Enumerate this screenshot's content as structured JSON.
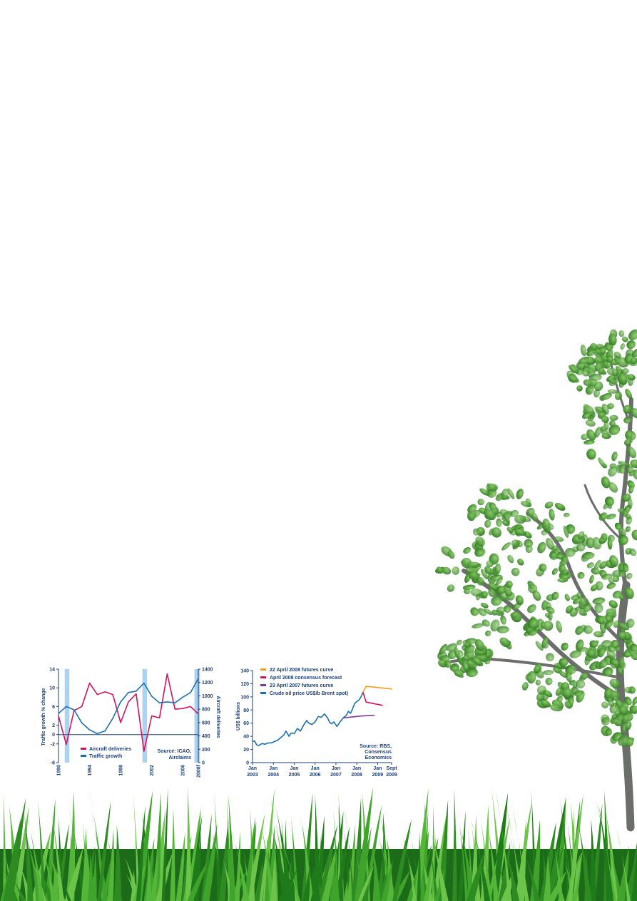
{
  "colors": {
    "navy": "#1b3f7a",
    "blue": "#1a6fb0",
    "crimson": "#d4145a",
    "orange": "#f5a01a",
    "purple": "#7b3f91",
    "recession": "#acd3ef",
    "grass": "#3a9a2a",
    "leaf": "#4f9a38"
  },
  "chart1": {
    "left_axis_label": "Traffic growth % change",
    "right_axis_label": "Aircraft deliveries",
    "source": [
      "Source: ICAO,",
      "Airclaims"
    ]
  },
  "chart2": {
    "y_axis_label": "US$ billions",
    "source": [
      "Source: RBS,",
      "Consensus",
      "Economics"
    ]
  },
  "chart_data": [
    {
      "type": "line",
      "ylim_left": [
        -6,
        14
      ],
      "ylim_right": [
        0,
        1400
      ],
      "y_ticks_left": [
        "14",
        "10",
        "6",
        "2",
        "0",
        "-2",
        "-6"
      ],
      "y_ticks_right": [
        "1400",
        "1200",
        "1000",
        "800",
        "600",
        "400",
        "200",
        "0"
      ],
      "x_ticks": [
        "1990",
        "1994",
        "1998",
        "2002",
        "2006",
        "2008f"
      ],
      "shaded_periods": [
        [
          1990.8,
          1991.4
        ],
        [
          2000.8,
          2001.4
        ],
        [
          2007.5,
          2008.2
        ]
      ],
      "legend": [
        "Aircraft deliveries",
        "Traffic growth"
      ],
      "series": [
        {
          "name": "Aircraft deliveries",
          "color": "#d4145a",
          "axis": "right",
          "x": [
            1990,
            1991,
            1992,
            1993,
            1994,
            1995,
            1996,
            1997,
            1998,
            1999,
            2000,
            2001,
            2002,
            2003,
            2004,
            2005,
            2006,
            2007,
            2008
          ],
          "values": [
            700,
            270,
            780,
            840,
            1190,
            1020,
            1060,
            1020,
            600,
            910,
            1030,
            170,
            700,
            670,
            1330,
            800,
            810,
            840,
            730
          ]
        },
        {
          "name": "Traffic growth",
          "color": "#1a6fb0",
          "axis": "left",
          "x": [
            1990,
            1991,
            1992,
            1993,
            1994,
            1995,
            1996,
            1997,
            1998,
            1999,
            2000,
            2001,
            2002,
            2003,
            2004,
            2005,
            2006,
            2007,
            2008
          ],
          "values": [
            4.5,
            6,
            5.3,
            2.5,
            1,
            0.2,
            0.8,
            3.5,
            7,
            9,
            9.3,
            11,
            8.2,
            6.8,
            7,
            6.8,
            8,
            9,
            12
          ]
        }
      ]
    },
    {
      "type": "line",
      "ylim": [
        0,
        140
      ],
      "y_ticks": [
        "140",
        "120",
        "100",
        "80",
        "60",
        "40",
        "20",
        "0"
      ],
      "x_ticks": [
        [
          "Jan",
          "2003"
        ],
        [
          "Jan",
          "2004"
        ],
        [
          "Jan",
          "2005"
        ],
        [
          "Jan",
          "2006"
        ],
        [
          "Jan",
          "2007"
        ],
        [
          "Jan",
          "2008"
        ],
        [
          "Jan",
          "2009"
        ],
        [
          "Sept",
          "2009"
        ]
      ],
      "legend": [
        "22 April 2008 futures curve",
        "April 2008 consensus forecast",
        "23 April 2007 futures curve",
        "Crude oil price US$/b Brent spot)"
      ],
      "series": [
        {
          "name": "Crude oil price US$/b Brent spot)",
          "color": "#1a6fb0",
          "x": [
            2003.0,
            2003.1,
            2003.2,
            2003.3,
            2003.45,
            2003.6,
            2003.75,
            2003.9,
            2004.05,
            2004.2,
            2004.35,
            2004.5,
            2004.6,
            2004.75,
            2004.85,
            2005.0,
            2005.15,
            2005.3,
            2005.45,
            2005.6,
            2005.7,
            2005.85,
            2006.0,
            2006.15,
            2006.3,
            2006.45,
            2006.6,
            2006.7,
            2006.8,
            2006.9,
            2007.05,
            2007.2,
            2007.35,
            2007.5,
            2007.6,
            2007.7,
            2007.8,
            2007.9,
            2008.0,
            2008.1,
            2008.2,
            2008.3
          ],
          "values": [
            32,
            33,
            27,
            26,
            29,
            28,
            30,
            30,
            32,
            34,
            38,
            42,
            48,
            40,
            45,
            44,
            52,
            48,
            57,
            64,
            60,
            58,
            62,
            70,
            69,
            74,
            68,
            61,
            59,
            62,
            55,
            62,
            68,
            72,
            78,
            75,
            82,
            90,
            93,
            95,
            100,
            107
          ]
        },
        {
          "name": "22 April 2008 futures curve",
          "color": "#f5a01a",
          "x": [
            2008.3,
            2008.45,
            2009.7
          ],
          "values": [
            107,
            116,
            112
          ]
        },
        {
          "name": "April 2008 consensus forecast",
          "color": "#d4145a",
          "x": [
            2008.3,
            2008.45,
            2009.25
          ],
          "values": [
            107,
            92,
            87
          ]
        },
        {
          "name": "23 April 2007 futures curve",
          "color": "#7b3f91",
          "x": [
            2007.35,
            2008.25,
            2008.85
          ],
          "values": [
            68,
            71,
            72
          ]
        }
      ]
    }
  ]
}
